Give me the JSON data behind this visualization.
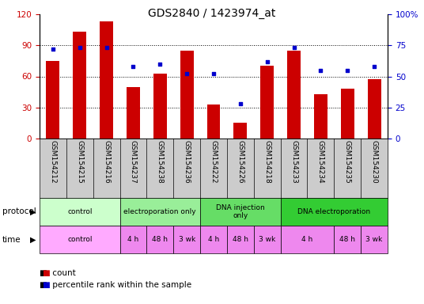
{
  "title": "GDS2840 / 1423974_at",
  "samples": [
    "GSM154212",
    "GSM154215",
    "GSM154216",
    "GSM154237",
    "GSM154238",
    "GSM154236",
    "GSM154222",
    "GSM154226",
    "GSM154218",
    "GSM154233",
    "GSM154234",
    "GSM154235",
    "GSM154230"
  ],
  "counts": [
    75,
    103,
    113,
    50,
    63,
    85,
    33,
    15,
    70,
    85,
    43,
    48,
    57
  ],
  "percentiles": [
    72,
    73,
    73,
    58,
    60,
    52,
    52,
    28,
    62,
    73,
    55,
    55,
    58
  ],
  "bar_color": "#cc0000",
  "dot_color": "#0000cc",
  "ylim_left": [
    0,
    120
  ],
  "ylim_right": [
    0,
    100
  ],
  "yticks_left": [
    0,
    30,
    60,
    90,
    120
  ],
  "yticks_right": [
    0,
    25,
    50,
    75,
    100
  ],
  "grid_values": [
    30,
    60,
    90
  ],
  "proto_groups": [
    {
      "label": "control",
      "cols": [
        0,
        1,
        2
      ],
      "color": "#ccffcc"
    },
    {
      "label": "electroporation only",
      "cols": [
        3,
        4,
        5
      ],
      "color": "#99ee99"
    },
    {
      "label": "DNA injection\nonly",
      "cols": [
        6,
        7,
        8
      ],
      "color": "#66dd66"
    },
    {
      "label": "DNA electroporation",
      "cols": [
        9,
        10,
        11,
        12
      ],
      "color": "#33cc33"
    }
  ],
  "time_groups": [
    {
      "label": "control",
      "cols": [
        0,
        1,
        2
      ],
      "color": "#ffaaff"
    },
    {
      "label": "4 h",
      "cols": [
        3
      ],
      "color": "#ee88ee"
    },
    {
      "label": "48 h",
      "cols": [
        4
      ],
      "color": "#ee88ee"
    },
    {
      "label": "3 wk",
      "cols": [
        5
      ],
      "color": "#ee88ee"
    },
    {
      "label": "4 h",
      "cols": [
        6
      ],
      "color": "#ee88ee"
    },
    {
      "label": "48 h",
      "cols": [
        7
      ],
      "color": "#ee88ee"
    },
    {
      "label": "3 wk",
      "cols": [
        8
      ],
      "color": "#ee88ee"
    },
    {
      "label": "4 h",
      "cols": [
        9,
        10
      ],
      "color": "#ee88ee"
    },
    {
      "label": "48 h",
      "cols": [
        11
      ],
      "color": "#ee88ee"
    },
    {
      "label": "3 wk",
      "cols": [
        12
      ],
      "color": "#ee88ee"
    }
  ],
  "bg_color": "#ffffff",
  "tick_color_left": "#cc0000",
  "tick_color_right": "#0000cc",
  "label_bg": "#cccccc"
}
